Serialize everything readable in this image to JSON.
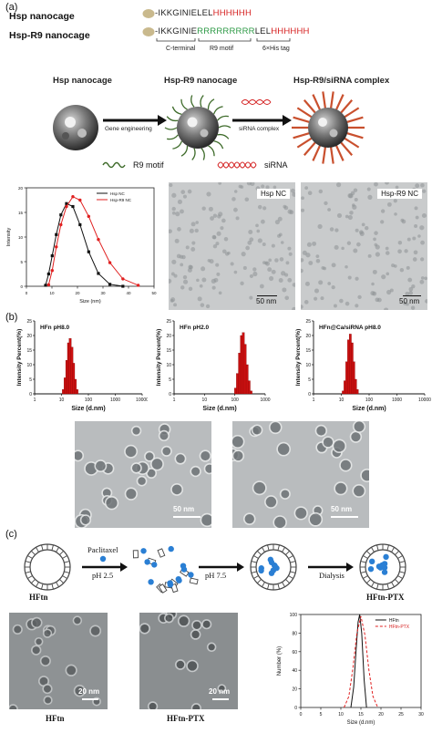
{
  "panel_a": {
    "label": "(a)",
    "seq1": {
      "name": "Hsp nanocage",
      "black": "-IKKGINIELEL",
      "red": "HHHHHH"
    },
    "seq2": {
      "name": "Hsp-R9 nanocage",
      "black1": "-IKKGINIE",
      "green": "RRRRRRRRR",
      "black2": "LEL",
      "red": "HHHHHH"
    },
    "sublabels": {
      "c_terminal": "C-terminal",
      "r9_motif": "R9 motif",
      "his_tag": "6×His tag"
    },
    "schematic": {
      "title_hsp": "Hsp nanocage",
      "title_hsp_r9": "Hsp-R9 nanocage",
      "title_complex": "Hsp-R9/siRNA complex",
      "arrow1": "Gene engineering",
      "arrow2": "siRNA complex",
      "legend_r9": "R9 motif",
      "legend_sirna": "siRNA",
      "colors": {
        "r9": "#2b6b2b",
        "sirna": "#d42222"
      }
    },
    "tem1": {
      "label": "Hsp NC",
      "scale": "50 nm"
    },
    "tem2": {
      "label": "Hsp-R9 NC",
      "scale": "50 nm"
    }
  },
  "panel_b": {
    "label": "(b)",
    "tem_scale1": "50 nm",
    "tem_scale2": "50 nm"
  },
  "panel_c": {
    "label": "(c)",
    "step1": "Paclitaxel",
    "step1b": "pH 2.5",
    "step2": "pH 7.5",
    "step3": "Dialysis",
    "name_start": "HFtn",
    "name_end": "HFtn-PTX",
    "tem1": {
      "label": "HFtn",
      "scale": "20 nm"
    },
    "tem2": {
      "label": "HFtn-PTX",
      "scale": "20 nm"
    }
  },
  "chart_data": [
    {
      "type": "line",
      "xlabel": "Size (nm)",
      "ylabel": "Intensity",
      "xlim": [
        0,
        50
      ],
      "ylim": [
        0,
        20
      ],
      "xticks": [
        0,
        10,
        20,
        30,
        40,
        50
      ],
      "yticks": [
        0,
        5,
        10,
        15,
        20
      ],
      "legend": "top-right",
      "series": [
        {
          "name": "Hsp NC",
          "color": "#111111",
          "x": [
            7.5,
            8.7,
            10.1,
            11.7,
            13.5,
            15.7,
            18.2,
            21.0,
            24.4,
            28.2,
            32.7,
            37.8
          ],
          "y": [
            0.2,
            2.5,
            6.2,
            10.5,
            14.5,
            16.8,
            16.2,
            12.5,
            7.0,
            2.6,
            0.4,
            0.0
          ]
        },
        {
          "name": "Hsp-R9 NC",
          "color": "#e02020",
          "x": [
            8.7,
            10.1,
            11.7,
            13.5,
            15.7,
            18.2,
            21.0,
            24.4,
            28.2,
            32.7,
            37.8,
            43.8
          ],
          "y": [
            0.3,
            3.2,
            8.0,
            12.5,
            16.2,
            18.2,
            17.5,
            14.2,
            9.5,
            4.8,
            1.5,
            0.2
          ]
        }
      ]
    },
    {
      "type": "bar",
      "title": "HFn pH8.0",
      "xlabel": "Size (d.nm)",
      "ylabel": "Intensity Percent(%)",
      "xscale": "log",
      "xticks": [
        1,
        10,
        100,
        1000,
        10000
      ],
      "ylim": [
        0,
        25
      ],
      "yticks": [
        0,
        5,
        10,
        15,
        20,
        25
      ],
      "color": "#cc1111",
      "x": [
        11.7,
        13.5,
        15.7,
        18.2,
        21.0,
        24.4,
        28.2,
        32.7,
        37.8
      ],
      "values": [
        1.5,
        5.5,
        11.5,
        17.5,
        19.0,
        16.0,
        10.5,
        5.0,
        1.5
      ]
    },
    {
      "type": "bar",
      "title": "HFn pH2.0",
      "xlabel": "Size (d.nm)",
      "ylabel": "Intensity Percent(%)",
      "xscale": "log",
      "xticks": [
        1,
        10,
        100,
        1000
      ],
      "ylim": [
        0,
        25
      ],
      "yticks": [
        0,
        5,
        10,
        15,
        20,
        25
      ],
      "color": "#cc1111",
      "x": [
        105,
        122,
        142,
        164,
        190,
        220,
        255,
        295,
        342
      ],
      "values": [
        2.0,
        7.0,
        14.0,
        20.0,
        21.0,
        17.0,
        10.0,
        4.5,
        1.0
      ]
    },
    {
      "type": "bar",
      "title": "HFn@Ca/siRNA pH8.0",
      "xlabel": "Size (d.nm)",
      "ylabel": "Intensity Percent(%)",
      "xscale": "log",
      "xticks": [
        1,
        10,
        100,
        1000,
        10000
      ],
      "ylim": [
        0,
        25
      ],
      "yticks": [
        0,
        5,
        10,
        15,
        20,
        25
      ],
      "color": "#cc1111",
      "x": [
        11.7,
        13.5,
        15.7,
        18.2,
        21.0,
        24.4,
        28.2,
        32.7,
        37.8
      ],
      "values": [
        1.0,
        4.5,
        11.0,
        18.5,
        20.5,
        17.5,
        11.0,
        5.0,
        1.5
      ]
    },
    {
      "type": "line",
      "xlabel": "Size (d.nm)",
      "ylabel": "Number (%)",
      "xlim": [
        0,
        30
      ],
      "ylim": [
        0,
        100
      ],
      "xticks": [
        0,
        5,
        10,
        15,
        20,
        25,
        30
      ],
      "yticks": [
        0,
        20,
        40,
        60,
        80,
        100
      ],
      "legend": "top-right",
      "series": [
        {
          "name": "HFtn",
          "color": "#111111",
          "dash": "solid",
          "x": [
            12.5,
            13.2,
            13.8,
            14.3,
            14.7,
            15.2,
            15.8,
            16.4
          ],
          "y": [
            0,
            22,
            62,
            92,
            100,
            80,
            30,
            0
          ]
        },
        {
          "name": "HFtn-PTX",
          "color": "#e02020",
          "dash": "dashed",
          "x": [
            10.8,
            12.0,
            13.0,
            14.0,
            15.0,
            16.0,
            17.0,
            18.0,
            19.2
          ],
          "y": [
            0,
            12,
            42,
            80,
            98,
            78,
            40,
            12,
            0
          ]
        }
      ]
    }
  ]
}
